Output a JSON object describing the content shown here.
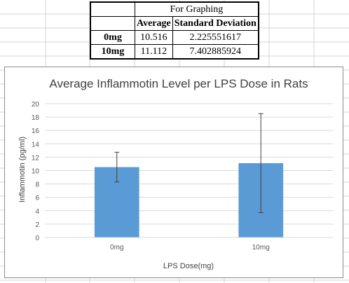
{
  "table": {
    "header_title": "For Graphing",
    "columns": [
      "",
      "Average",
      "Standard Deviation"
    ],
    "rows": [
      {
        "label": "0mg",
        "average": "10.516",
        "std_dev": "2.225551617"
      },
      {
        "label": "10mg",
        "average": "11.112",
        "std_dev": "7.402885924"
      }
    ]
  },
  "chart_data": {
    "type": "bar",
    "title": "Average Inflammotin Level per LPS Dose in Rats",
    "xlabel": "LPS Dose(mg)",
    "ylabel": "Inflammotin (pg/ml)",
    "categories": [
      "0mg",
      "10mg"
    ],
    "values": [
      10.516,
      11.112
    ],
    "error_bars": [
      2.225551617,
      7.402885924
    ],
    "ylim": [
      0,
      20
    ],
    "yticks": [
      0,
      2,
      4,
      6,
      8,
      10,
      12,
      14,
      16,
      18,
      20
    ],
    "grid": true,
    "legend": "none",
    "bar_color": "#5b9bd5"
  }
}
